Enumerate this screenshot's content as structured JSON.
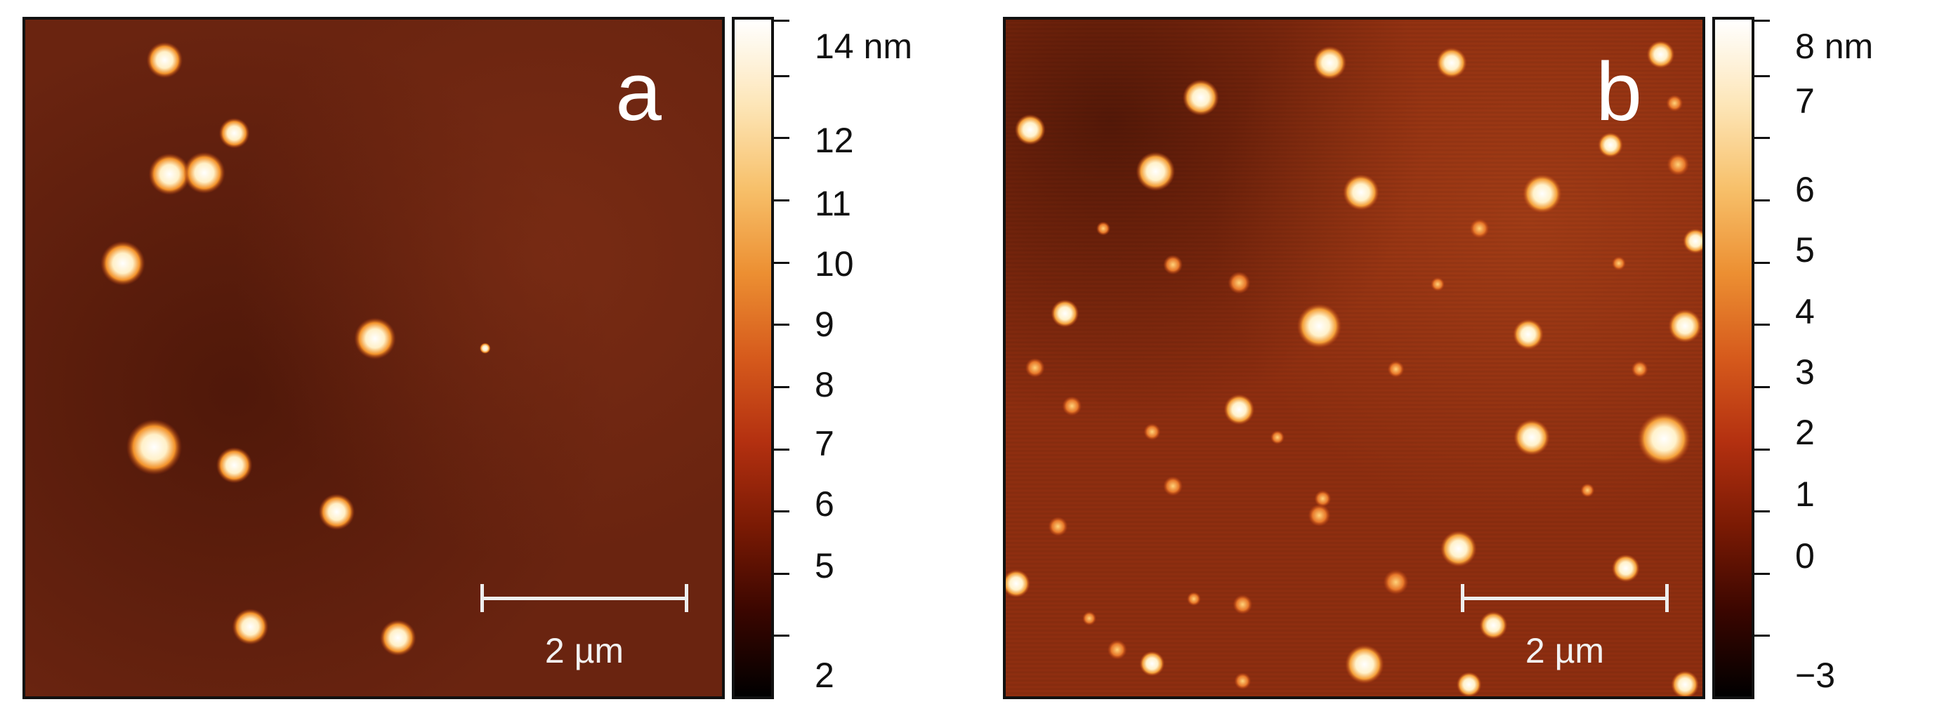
{
  "panels": [
    {
      "letter": "a",
      "scale_label": "2 µm",
      "colorbar": {
        "labels": [
          "14 nm",
          "12",
          "11",
          "10",
          "9",
          "8",
          "7",
          "6",
          "5",
          "2"
        ],
        "gradient": [
          "#000000",
          "#3a0600",
          "#7a1a04",
          "#b33010",
          "#d65a1c",
          "#ec8f32",
          "#f7c06a",
          "#fde6b8",
          "#ffffff"
        ]
      }
    },
    {
      "letter": "b",
      "scale_label": "2 µm",
      "colorbar": {
        "labels": [
          "8 nm",
          "7",
          "6",
          "5",
          "4",
          "3",
          "2",
          "1",
          "0",
          "−3"
        ],
        "gradient": [
          "#000000",
          "#3a0600",
          "#7a1a04",
          "#b33010",
          "#d65a1c",
          "#ec8f32",
          "#f7c06a",
          "#fde6b8",
          "#ffffff"
        ]
      }
    }
  ],
  "colors": {
    "background_a": "#6a2410",
    "background_b": "#8e2e10",
    "particle_core": "#ffffff",
    "particle_glow": "#f5a43a"
  }
}
